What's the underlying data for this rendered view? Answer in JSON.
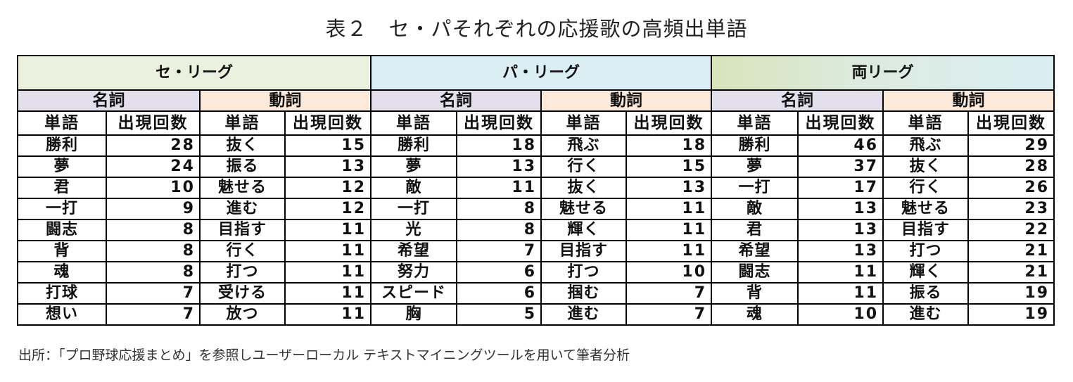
{
  "title": "表２　セ・パそれぞれの応援歌の高頻出単語",
  "column_headers": {
    "word": "単語",
    "count": "出現回数"
  },
  "pos_labels": {
    "noun": "名詞",
    "verb": "動詞"
  },
  "leagues": [
    {
      "name": "セ・リーグ",
      "rows": [
        {
          "noun": "勝利",
          "noun_count": "28",
          "verb": "抜く",
          "verb_count": "15"
        },
        {
          "noun": "夢",
          "noun_count": "24",
          "verb": "振る",
          "verb_count": "13"
        },
        {
          "noun": "君",
          "noun_count": "10",
          "verb": "魅せる",
          "verb_count": "12"
        },
        {
          "noun": "一打",
          "noun_count": "9",
          "verb": "進む",
          "verb_count": "12"
        },
        {
          "noun": "闘志",
          "noun_count": "8",
          "verb": "目指す",
          "verb_count": "11"
        },
        {
          "noun": "背",
          "noun_count": "8",
          "verb": "行く",
          "verb_count": "11"
        },
        {
          "noun": "魂",
          "noun_count": "8",
          "verb": "打つ",
          "verb_count": "11"
        },
        {
          "noun": "打球",
          "noun_count": "7",
          "verb": "受ける",
          "verb_count": "11"
        },
        {
          "noun": "想い",
          "noun_count": "7",
          "verb": "放つ",
          "verb_count": "11"
        }
      ]
    },
    {
      "name": "パ・リーグ",
      "rows": [
        {
          "noun": "勝利",
          "noun_count": "18",
          "verb": "飛ぶ",
          "verb_count": "18"
        },
        {
          "noun": "夢",
          "noun_count": "13",
          "verb": "行く",
          "verb_count": "15"
        },
        {
          "noun": "敵",
          "noun_count": "11",
          "verb": "抜く",
          "verb_count": "13"
        },
        {
          "noun": "一打",
          "noun_count": "8",
          "verb": "魅せる",
          "verb_count": "11"
        },
        {
          "noun": "光",
          "noun_count": "8",
          "verb": "輝く",
          "verb_count": "11"
        },
        {
          "noun": "希望",
          "noun_count": "7",
          "verb": "目指す",
          "verb_count": "11"
        },
        {
          "noun": "努力",
          "noun_count": "6",
          "verb": "打つ",
          "verb_count": "10"
        },
        {
          "noun": "スピード",
          "noun_count": "6",
          "verb": "掴む",
          "verb_count": "7"
        },
        {
          "noun": "胸",
          "noun_count": "5",
          "verb": "進む",
          "verb_count": "7"
        }
      ]
    },
    {
      "name": "両リーグ",
      "rows": [
        {
          "noun": "勝利",
          "noun_count": "46",
          "verb": "飛ぶ",
          "verb_count": "29"
        },
        {
          "noun": "夢",
          "noun_count": "37",
          "verb": "抜く",
          "verb_count": "28"
        },
        {
          "noun": "一打",
          "noun_count": "17",
          "verb": "行く",
          "verb_count": "26"
        },
        {
          "noun": "敵",
          "noun_count": "13",
          "verb": "魅せる",
          "verb_count": "23"
        },
        {
          "noun": "君",
          "noun_count": "13",
          "verb": "目指す",
          "verb_count": "22"
        },
        {
          "noun": "希望",
          "noun_count": "13",
          "verb": "打つ",
          "verb_count": "21"
        },
        {
          "noun": "闘志",
          "noun_count": "11",
          "verb": "輝く",
          "verb_count": "21"
        },
        {
          "noun": "背",
          "noun_count": "11",
          "verb": "振る",
          "verb_count": "19"
        },
        {
          "noun": "魂",
          "noun_count": "10",
          "verb": "進む",
          "verb_count": "19"
        }
      ]
    }
  ],
  "colors": {
    "ce_league": "#EBF1DE",
    "pa_league": "#DAEEF3",
    "both_league_from": "#D8E4BC",
    "both_league_to": "#DAEEF3",
    "noun_header": "#E4DFEC",
    "verb_header": "#FDE9D9"
  },
  "source": "出所：「プロ野球応援まとめ」を参照しユーザーローカル テキストマイニングツールを用いて筆者分析"
}
